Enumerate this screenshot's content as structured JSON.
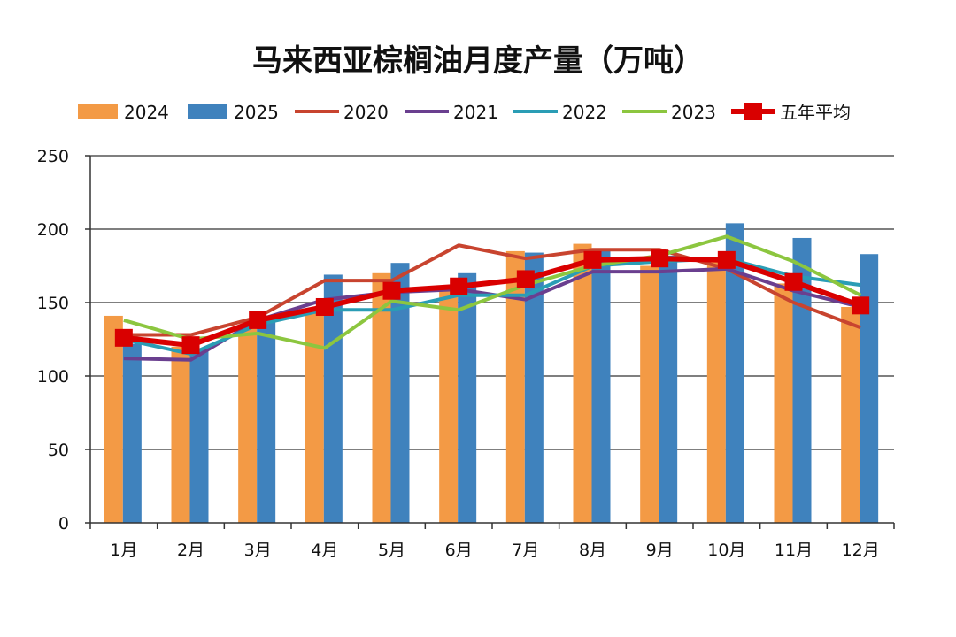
{
  "chart_data": {
    "type": "bar+line",
    "title": "马来西亚棕榈油月度产量（万吨）",
    "categories": [
      "1月",
      "2月",
      "3月",
      "4月",
      "5月",
      "6月",
      "7月",
      "8月",
      "9月",
      "10月",
      "11月",
      "12月"
    ],
    "ylim": [
      0,
      250
    ],
    "yticks": [
      "0",
      "50",
      "100",
      "150",
      "200",
      "250"
    ],
    "grid": true,
    "legend_position": "top",
    "bar_series": [
      {
        "name": "2024",
        "color": "#f39a45",
        "values": [
          141,
          120,
          132,
          143,
          170,
          158,
          185,
          190,
          175,
          178,
          163,
          147
        ]
      },
      {
        "name": "2025",
        "color": "#3f82bd",
        "values": [
          122,
          118,
          139,
          169,
          177,
          170,
          184,
          186,
          182,
          204,
          194,
          183
        ]
      }
    ],
    "line_series": [
      {
        "name": "2020",
        "color": "#c8442f",
        "values": [
          128,
          128,
          140,
          165,
          165,
          189,
          180,
          186,
          186,
          173,
          150,
          133
        ]
      },
      {
        "name": "2021",
        "color": "#6a3f8f",
        "values": [
          112,
          111,
          138,
          152,
          157,
          159,
          152,
          171,
          171,
          173,
          158,
          147
        ]
      },
      {
        "name": "2022",
        "color": "#2a9db5",
        "values": [
          125,
          115,
          135,
          145,
          145,
          155,
          155,
          175,
          178,
          180,
          168,
          162
        ]
      },
      {
        "name": "2023",
        "color": "#8cc63f",
        "values": [
          138,
          125,
          129,
          119,
          151,
          145,
          162,
          175,
          182,
          195,
          178,
          155
        ]
      },
      {
        "name": "五年平均",
        "color": "#d90000",
        "marker": "square",
        "values": [
          126,
          121,
          138,
          147,
          158,
          161,
          166,
          179,
          180,
          179,
          164,
          148
        ]
      }
    ]
  }
}
